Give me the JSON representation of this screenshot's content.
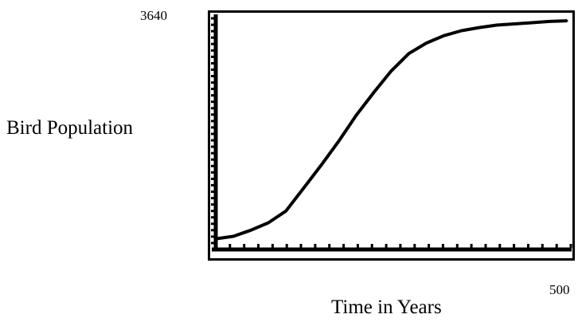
{
  "chart_data": {
    "type": "line",
    "title": "",
    "xlabel": "Time in Years",
    "ylabel": "Bird Population",
    "xlim": [
      0,
      500
    ],
    "ylim": [
      0,
      3640
    ],
    "tick_labels": {
      "ymax": "3640",
      "xmax": "500"
    },
    "grid": false,
    "series": [
      {
        "x": [
          0,
          25,
          50,
          75,
          100,
          125,
          150,
          175,
          200,
          225,
          250,
          275,
          300,
          325,
          350,
          375,
          400,
          425,
          450,
          475,
          500
        ],
        "y": [
          160,
          200,
          300,
          420,
          610,
          980,
          1350,
          1740,
          2160,
          2530,
          2880,
          3160,
          3330,
          3450,
          3530,
          3580,
          3620,
          3640,
          3660,
          3680,
          3690
        ],
        "color": "#000000"
      }
    ]
  }
}
